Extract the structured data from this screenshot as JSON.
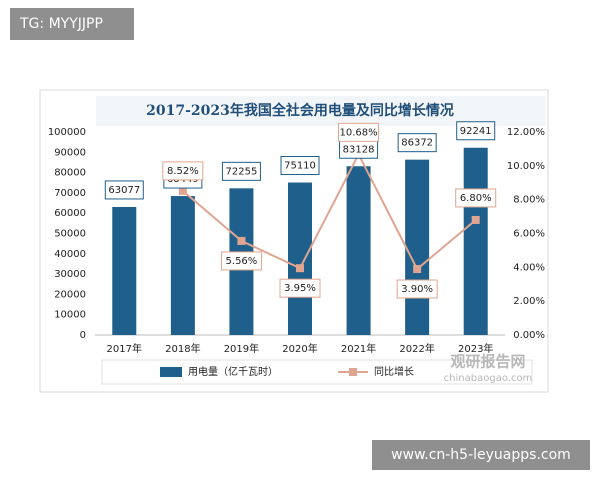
{
  "header": {
    "tag": "TG: MYYJJPP"
  },
  "footer": {
    "url": "www.cn-h5-leyuapps.com"
  },
  "watermark": {
    "name": "观研报告网",
    "site": "chinabaogao.com"
  },
  "chart_data": {
    "type": "bar_line",
    "title": "2017-2023年我国全社会用电量及同比增长情况",
    "categories": [
      "2017年",
      "2018年",
      "2019年",
      "2020年",
      "2021年",
      "2022年",
      "2023年"
    ],
    "series": [
      {
        "name": "用电量（亿千瓦时）",
        "type": "bar",
        "color": "#1f5f8b",
        "values": [
          63077,
          68449,
          72255,
          75110,
          83128,
          86372,
          92241
        ]
      },
      {
        "name": "同比增长",
        "type": "line",
        "axis": "y2",
        "color": "#e0a590",
        "values": [
          null,
          8.52,
          5.56,
          3.95,
          10.68,
          3.9,
          6.8
        ],
        "value_labels": [
          null,
          "8.52%",
          "5.56%",
          "3.95%",
          "10.68%",
          "3.90%",
          "6.80%"
        ]
      }
    ],
    "ylim": [
      0,
      100000
    ],
    "yticks": [
      0,
      10000,
      20000,
      30000,
      40000,
      50000,
      60000,
      70000,
      80000,
      90000,
      100000
    ],
    "y2lim": [
      0,
      12
    ],
    "y2ticks": [
      {
        "value": 0,
        "label": "0.00%"
      },
      {
        "value": 2,
        "label": "2.00%"
      },
      {
        "value": 4,
        "label": "4.00%"
      },
      {
        "value": 6,
        "label": "6.00%"
      },
      {
        "value": 8,
        "label": "8.00%"
      },
      {
        "value": 10,
        "label": "10.00%"
      },
      {
        "value": 12,
        "label": "12.00%"
      }
    ],
    "legend": "bottom"
  }
}
